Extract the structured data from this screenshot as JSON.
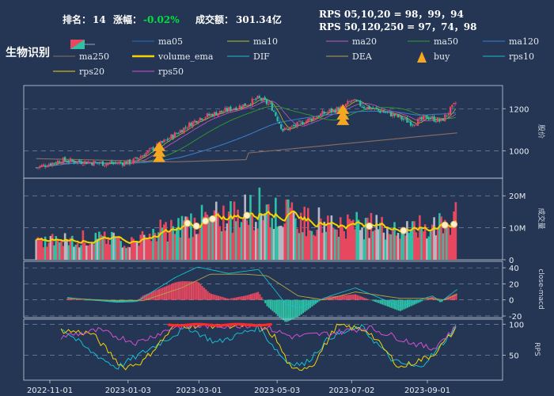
{
  "header": {
    "rank_label": "排名：",
    "rank_value": "14",
    "change_label": "涨幅：",
    "change_value": "-0.02%",
    "turnover_label": "成交额：",
    "turnover_value": "301.34亿",
    "rps_line1": "RPS 05,10,20 = 98，99，94",
    "rps_line2": "RPS 50,120,250 = 97，74，98"
  },
  "sector_name": "生物识别",
  "legend": [
    {
      "name": "ma05",
      "color": "#1f77b4",
      "style": "line"
    },
    {
      "name": "ma10",
      "color": "#bcbd22",
      "style": "line"
    },
    {
      "name": "ma20",
      "color": "#c458c4",
      "style": "line"
    },
    {
      "name": "ma50",
      "color": "#2ca02c",
      "style": "line"
    },
    {
      "name": "ma120",
      "color": "#3a7fd0",
      "style": "line"
    },
    {
      "name": "ma250",
      "color": "#8c6d62",
      "style": "line"
    },
    {
      "name": "volume_ema",
      "color": "#f5d300",
      "style": "thick"
    },
    {
      "name": "DIF",
      "color": "#17becf",
      "style": "line"
    },
    {
      "name": "DEA",
      "color": "#b5a642",
      "style": "line"
    },
    {
      "name": "buy",
      "color": "#f5a623",
      "style": "triangle"
    },
    {
      "name": "rps10",
      "color": "#17becf",
      "style": "line"
    },
    {
      "name": "rps20",
      "color": "#f5d300",
      "style": "line"
    },
    {
      "name": "rps50",
      "color": "#d64fd0",
      "style": "line"
    }
  ],
  "colors": {
    "up": "#e8485f",
    "down": "#2fc1a5",
    "background": "#243653",
    "grid": "#8596b0"
  },
  "x_ticks": [
    "2022-11-01",
    "2023-01-03",
    "2023-03-01",
    "2023-05-03",
    "2023-07-02",
    "2023-09-01"
  ],
  "axis_labels": {
    "price": "股价",
    "volume": "成交量",
    "macd": "close-macd",
    "rps": "RPS"
  },
  "chart_data": [
    {
      "type": "candlestick",
      "panel": "price",
      "ylabel": "股价",
      "ylim": [
        870,
        1310
      ],
      "yticks": [
        1000,
        1200
      ],
      "x_range": [
        "2022-10-21",
        "2023-09-25"
      ],
      "key_points": [
        {
          "date": "2022-10-21",
          "close": 920
        },
        {
          "date": "2022-11-10",
          "close": 955
        },
        {
          "date": "2022-12-15",
          "close": 940
        },
        {
          "date": "2023-01-05",
          "close": 945
        },
        {
          "date": "2023-01-31",
          "close": 1040
        },
        {
          "date": "2023-03-01",
          "close": 1155
        },
        {
          "date": "2023-04-08",
          "close": 1220
        },
        {
          "date": "2023-04-18",
          "close": 1250
        },
        {
          "date": "2023-04-28",
          "close": 1215
        },
        {
          "date": "2023-05-08",
          "close": 1095
        },
        {
          "date": "2023-06-10",
          "close": 1180
        },
        {
          "date": "2023-06-25",
          "close": 1205
        },
        {
          "date": "2023-07-02",
          "close": 1240
        },
        {
          "date": "2023-07-12",
          "close": 1210
        },
        {
          "date": "2023-08-05",
          "close": 1170
        },
        {
          "date": "2023-08-20",
          "close": 1130
        },
        {
          "date": "2023-09-01",
          "close": 1160
        },
        {
          "date": "2023-09-12",
          "close": 1140
        },
        {
          "date": "2023-09-25",
          "close": 1235
        }
      ],
      "ma250": [
        {
          "date": "2022-10-21",
          "value": 963
        },
        {
          "date": "2023-02-10",
          "value": 948
        },
        {
          "date": "2023-04-08",
          "value": 958
        },
        {
          "date": "2023-04-10",
          "value": 990
        },
        {
          "date": "2023-09-25",
          "value": 1085
        }
      ],
      "buy_signals": [
        "2023-01-28",
        "2023-06-25"
      ]
    },
    {
      "type": "bar",
      "panel": "volume",
      "ylabel": "成交量",
      "ylim": [
        0,
        25
      ],
      "yticks": [
        0,
        10,
        20
      ],
      "ytick_labels": [
        "0",
        "10M",
        "20M"
      ],
      "unit": "M",
      "key_points": [
        {
          "date": "2022-10-21",
          "value": 6
        },
        {
          "date": "2022-12-01",
          "value": 7
        },
        {
          "date": "2023-01-10",
          "value": 6
        },
        {
          "date": "2023-01-25",
          "value": 9
        },
        {
          "date": "2023-02-20",
          "value": 12
        },
        {
          "date": "2023-03-20",
          "value": 14
        },
        {
          "date": "2023-04-18",
          "value": 17
        },
        {
          "date": "2023-05-15",
          "value": 14
        },
        {
          "date": "2023-06-20",
          "value": 12
        },
        {
          "date": "2023-07-15",
          "value": 11
        },
        {
          "date": "2023-08-20",
          "value": 10
        },
        {
          "date": "2023-09-20",
          "value": 12
        },
        {
          "date": "2023-09-24",
          "value": 18
        },
        {
          "date": "2023-09-25",
          "value": 24
        }
      ]
    },
    {
      "type": "line",
      "panel": "macd",
      "ylabel": "close-macd",
      "ylim": [
        -22,
        48
      ],
      "yticks": [
        -20,
        0,
        20,
        40
      ],
      "series": [
        {
          "name": "DIF",
          "points": [
            {
              "date": "2022-11-15",
              "value": 3
            },
            {
              "date": "2022-12-25",
              "value": -3
            },
            {
              "date": "2023-01-10",
              "value": -2
            },
            {
              "date": "2023-02-10",
              "value": 28
            },
            {
              "date": "2023-02-28",
              "value": 41
            },
            {
              "date": "2023-03-25",
              "value": 33
            },
            {
              "date": "2023-04-18",
              "value": 38
            },
            {
              "date": "2023-05-10",
              "value": -5
            },
            {
              "date": "2023-05-20",
              "value": -10
            },
            {
              "date": "2023-06-15",
              "value": 5
            },
            {
              "date": "2023-07-05",
              "value": 15
            },
            {
              "date": "2023-08-10",
              "value": -8
            },
            {
              "date": "2023-09-05",
              "value": 5
            },
            {
              "date": "2023-09-12",
              "value": -2
            },
            {
              "date": "2023-09-25",
              "value": 13
            }
          ]
        },
        {
          "name": "DEA",
          "points": [
            {
              "date": "2022-11-15",
              "value": 2
            },
            {
              "date": "2022-12-25",
              "value": -1
            },
            {
              "date": "2023-01-15",
              "value": -1
            },
            {
              "date": "2023-02-15",
              "value": 15
            },
            {
              "date": "2023-03-10",
              "value": 32
            },
            {
              "date": "2023-04-08",
              "value": 32
            },
            {
              "date": "2023-04-25",
              "value": 30
            },
            {
              "date": "2023-05-20",
              "value": 5
            },
            {
              "date": "2023-06-10",
              "value": 0
            },
            {
              "date": "2023-07-05",
              "value": 10
            },
            {
              "date": "2023-08-10",
              "value": 2
            },
            {
              "date": "2023-09-05",
              "value": 2
            },
            {
              "date": "2023-09-15",
              "value": 0
            },
            {
              "date": "2023-09-25",
              "value": 7
            }
          ]
        }
      ]
    },
    {
      "type": "line",
      "panel": "rps",
      "ylabel": "RPS",
      "ylim": [
        10,
        108
      ],
      "yticks": [
        50,
        100
      ],
      "series": [
        {
          "name": "rps10",
          "points": [
            {
              "date": "2022-11-10",
              "value": 95
            },
            {
              "date": "2022-12-01",
              "value": 60
            },
            {
              "date": "2022-12-25",
              "value": 30
            },
            {
              "date": "2023-01-20",
              "value": 60
            },
            {
              "date": "2023-02-20",
              "value": 95
            },
            {
              "date": "2023-03-15",
              "value": 70
            },
            {
              "date": "2023-04-18",
              "value": 95
            },
            {
              "date": "2023-05-10",
              "value": 40
            },
            {
              "date": "2023-05-25",
              "value": 35
            },
            {
              "date": "2023-06-15",
              "value": 80
            },
            {
              "date": "2023-07-10",
              "value": 95
            },
            {
              "date": "2023-08-05",
              "value": 40
            },
            {
              "date": "2023-08-25",
              "value": 30
            },
            {
              "date": "2023-09-10",
              "value": 60
            },
            {
              "date": "2023-09-25",
              "value": 99
            }
          ]
        },
        {
          "name": "rps20",
          "points": [
            {
              "date": "2022-11-10",
              "value": 90
            },
            {
              "date": "2022-12-05",
              "value": 85
            },
            {
              "date": "2022-12-30",
              "value": 30
            },
            {
              "date": "2023-01-15",
              "value": 40
            },
            {
              "date": "2023-02-10",
              "value": 98
            },
            {
              "date": "2023-04-18",
              "value": 98
            },
            {
              "date": "2023-05-01",
              "value": 80
            },
            {
              "date": "2023-05-15",
              "value": 25
            },
            {
              "date": "2023-06-01",
              "value": 35
            },
            {
              "date": "2023-06-20",
              "value": 98
            },
            {
              "date": "2023-07-15",
              "value": 90
            },
            {
              "date": "2023-08-10",
              "value": 30
            },
            {
              "date": "2023-09-05",
              "value": 50
            },
            {
              "date": "2023-09-25",
              "value": 94
            }
          ]
        },
        {
          "name": "rps50",
          "points": [
            {
              "date": "2022-11-10",
              "value": 80
            },
            {
              "date": "2022-12-10",
              "value": 90
            },
            {
              "date": "2023-01-10",
              "value": 70
            },
            {
              "date": "2023-02-10",
              "value": 96
            },
            {
              "date": "2023-04-18",
              "value": 99
            },
            {
              "date": "2023-05-15",
              "value": 80
            },
            {
              "date": "2023-06-15",
              "value": 85
            },
            {
              "date": "2023-07-15",
              "value": 95
            },
            {
              "date": "2023-08-20",
              "value": 70
            },
            {
              "date": "2023-09-05",
              "value": 60
            },
            {
              "date": "2023-09-25",
              "value": 97
            }
          ]
        }
      ]
    }
  ]
}
